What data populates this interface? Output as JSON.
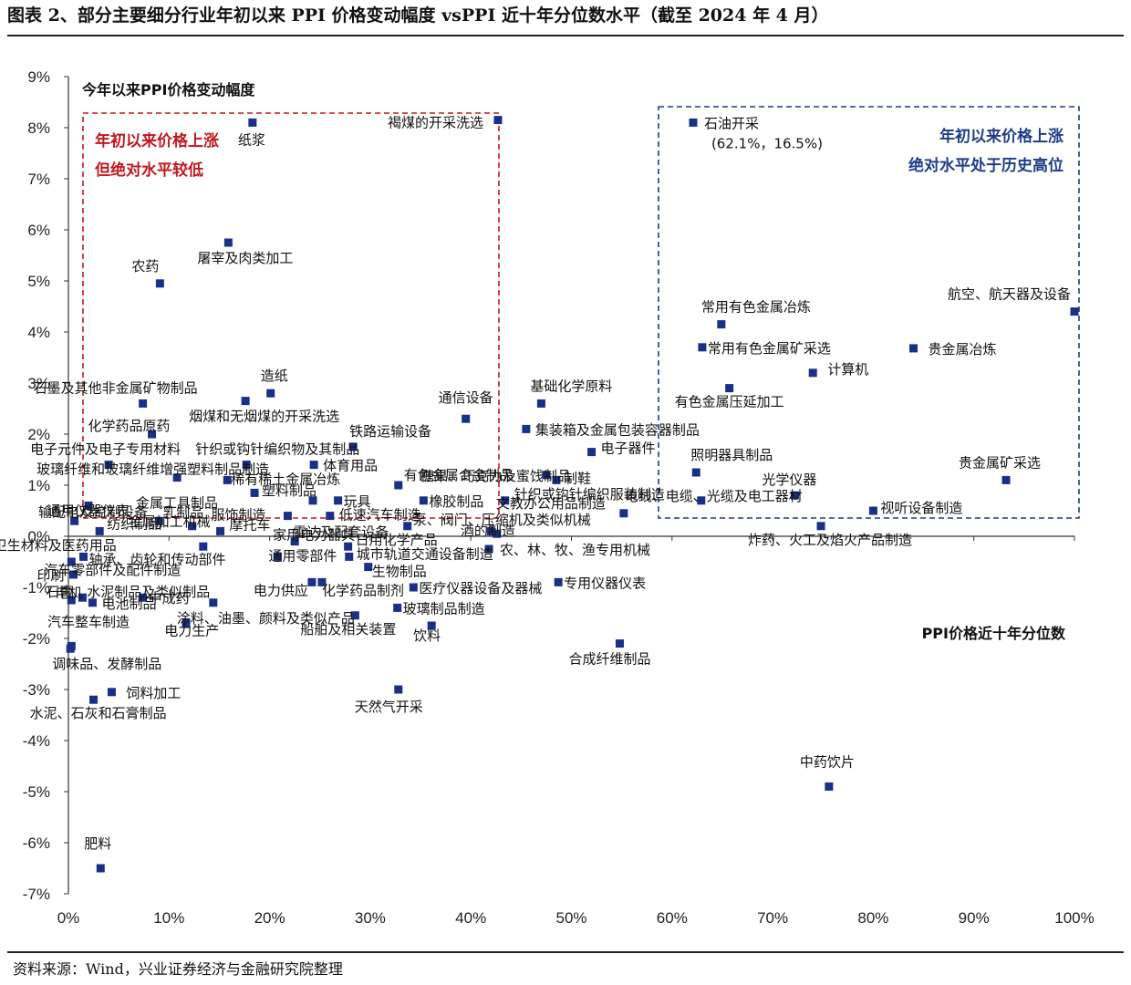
{
  "page": {
    "title": "图表 2、部分主要细分行业年初以来 PPI 价格变动幅度 vsPPI 近十年分位数水平（截至 2024 年 4 月）",
    "source": "资料来源：Wind，兴业证券经济与金融研究院整理"
  },
  "colors": {
    "marker": "#1a2f86",
    "red_box": "#c0181f",
    "blue_box": "#1f3c88"
  },
  "annotations": {
    "red_box": [
      "年初以来价格上涨",
      "但绝对水平较低"
    ],
    "blue_box": [
      "年初以来价格上涨",
      "绝对水平处于历史高位"
    ],
    "oil_coords": "(62.1%，16.5%)"
  },
  "chart_data": {
    "type": "scatter",
    "ylabel": "今年以来PPI价格变动幅度",
    "xlabel": "PPI价格近十年分位数",
    "xlim": [
      0,
      100
    ],
    "ylim": [
      -7,
      9
    ],
    "xticks": [
      "0%",
      "10%",
      "20%",
      "30%",
      "40%",
      "50%",
      "60%",
      "70%",
      "80%",
      "90%",
      "100%"
    ],
    "yticks": [
      "9%",
      "8%",
      "7%",
      "6%",
      "5%",
      "4%",
      "3%",
      "2%",
      "1%",
      "0%",
      "-1%",
      "-2%",
      "-3%",
      "-4%",
      "-5%",
      "-6%",
      "-7%"
    ],
    "points": [
      {
        "name": "纸浆",
        "x": 18.3,
        "y": 8.1
      },
      {
        "name": "褐煤的开采洗选",
        "x": 42.7,
        "y": 8.15
      },
      {
        "name": "石油开采",
        "x": 62.1,
        "y": 8.1
      },
      {
        "name": "屠宰及肉类加工",
        "x": 15.9,
        "y": 5.75
      },
      {
        "name": "农药",
        "x": 9.1,
        "y": 4.95
      },
      {
        "name": "航空、航天器及设备",
        "x": 100.0,
        "y": 4.4
      },
      {
        "name": "常用有色金属冶炼",
        "x": 64.9,
        "y": 4.15
      },
      {
        "name": "常用有色金属矿采选",
        "x": 63.0,
        "y": 3.7
      },
      {
        "name": "贵金属冶炼",
        "x": 84.0,
        "y": 3.68
      },
      {
        "name": "计算机",
        "x": 74.0,
        "y": 3.2
      },
      {
        "name": "有色金属压延加工",
        "x": 65.7,
        "y": 2.9
      },
      {
        "name": "造纸",
        "x": 20.1,
        "y": 2.8
      },
      {
        "name": "石墨及其他非金属矿物制品",
        "x": 7.4,
        "y": 2.6
      },
      {
        "name": "烟煤和无烟煤的开采洗选",
        "x": 17.6,
        "y": 2.65
      },
      {
        "name": "通信设备",
        "x": 39.5,
        "y": 2.3
      },
      {
        "name": "基础化学原料",
        "x": 47.0,
        "y": 2.6
      },
      {
        "name": "化学药品原药",
        "x": 8.3,
        "y": 2.0
      },
      {
        "name": "铁路运输设备",
        "x": 28.3,
        "y": 1.75
      },
      {
        "name": "集装箱及金属包装容器制品",
        "x": 45.5,
        "y": 2.1
      },
      {
        "name": "电子元件及电子专用材料",
        "x": 4.0,
        "y": 1.4
      },
      {
        "name": "针织或钩针编织物及其制品",
        "x": 17.7,
        "y": 1.4
      },
      {
        "name": "电子器件",
        "x": 52.0,
        "y": 1.65
      },
      {
        "name": "糖果、巧克力及蜜饯制品",
        "x": 47.5,
        "y": 1.2
      },
      {
        "name": "制鞋",
        "x": 48.5,
        "y": 1.1
      },
      {
        "name": "照明器具制品",
        "x": 62.4,
        "y": 1.25
      },
      {
        "name": "贵金属矿采选",
        "x": 93.2,
        "y": 1.1
      },
      {
        "name": "玻璃纤维和玻璃纤维增强塑料制品制造",
        "x": 10.8,
        "y": 1.15
      },
      {
        "name": "体育用品",
        "x": 24.4,
        "y": 1.4
      },
      {
        "name": "稀有稀土金属冶炼",
        "x": 15.8,
        "y": 1.1
      },
      {
        "name": "有色金属合金制品",
        "x": 32.8,
        "y": 1.0
      },
      {
        "name": "输配电及控制设备",
        "x": 2.0,
        "y": 0.6
      },
      {
        "name": "金属工具制品",
        "x": 18.5,
        "y": 0.85
      },
      {
        "name": "玩具",
        "x": 26.8,
        "y": 0.7
      },
      {
        "name": "橡胶制品",
        "x": 35.3,
        "y": 0.7
      },
      {
        "name": "针织或钩针编织服装制造",
        "x": 43.4,
        "y": 0.7
      },
      {
        "name": "光学仪器",
        "x": 72.2,
        "y": 0.8
      },
      {
        "name": "通用仪器仪表",
        "x": 0.6,
        "y": 0.3
      },
      {
        "name": "乳制品",
        "x": 9.0,
        "y": 0.3
      },
      {
        "name": "服饰制造",
        "x": 21.8,
        "y": 0.4
      },
      {
        "name": "塑料制品",
        "x": 24.3,
        "y": 0.7
      },
      {
        "name": "低速汽车制造",
        "x": 26.0,
        "y": 0.4
      },
      {
        "name": "文教办公用品制造",
        "x": 55.2,
        "y": 0.45
      },
      {
        "name": "电线、电缆、光缆及电工器材",
        "x": 62.9,
        "y": 0.7
      },
      {
        "name": "视听设备制造",
        "x": 80.0,
        "y": 0.5
      },
      {
        "name": "纺织制品",
        "x": 3.1,
        "y": 0.1
      },
      {
        "name": "金属加工机械",
        "x": 12.3,
        "y": 0.2
      },
      {
        "name": "摩托车",
        "x": 15.1,
        "y": 0.1
      },
      {
        "name": "家用电力器具",
        "x": 22.5,
        "y": -0.1
      },
      {
        "name": "泵、阀门、压缩机及类似机械",
        "x": 33.7,
        "y": 0.2
      },
      {
        "name": "雷达及配套设备",
        "x": 42.0,
        "y": 0.1
      },
      {
        "name": "炸药、火工及焰火产品制造",
        "x": 74.8,
        "y": 0.2
      },
      {
        "name": "汽车零部件及配件制造",
        "x": 0.3,
        "y": -0.5
      },
      {
        "name": "卫生材料及医药用品",
        "x": 13.4,
        "y": -0.2
      },
      {
        "name": "日用化学产品",
        "x": 27.8,
        "y": -0.2
      },
      {
        "name": "酒的制造",
        "x": 42.6,
        "y": 0.05
      },
      {
        "name": "农、林、牧、渔专用机械",
        "x": 41.8,
        "y": -0.25
      },
      {
        "name": "印刷",
        "x": 0.5,
        "y": -0.75
      },
      {
        "name": "轴承、齿轮和传动部件",
        "x": 1.5,
        "y": -0.4
      },
      {
        "name": "通用零部件",
        "x": 20.8,
        "y": -0.4
      },
      {
        "name": "城市轨道交通设备制造",
        "x": 27.9,
        "y": -0.4
      },
      {
        "name": "石膏、水泥制品及类似制品",
        "x": 0.3,
        "y": -1.25
      },
      {
        "name": "生物制品",
        "x": 29.8,
        "y": -0.6
      },
      {
        "name": "医疗仪器设备及器械",
        "x": 34.3,
        "y": -1.0
      },
      {
        "name": "专用仪器仪表",
        "x": 48.7,
        "y": -0.9
      },
      {
        "name": "电力供应",
        "x": 24.2,
        "y": -0.9
      },
      {
        "name": "化学药品制剂",
        "x": 25.2,
        "y": -0.9
      },
      {
        "name": "中成药",
        "x": 7.4,
        "y": -1.2
      },
      {
        "name": "电机",
        "x": 1.4,
        "y": -1.2
      },
      {
        "name": "电池制品",
        "x": 2.4,
        "y": -1.3
      },
      {
        "name": "涂料、油墨、颜料及类似产品",
        "x": 14.4,
        "y": -1.3
      },
      {
        "name": "玻璃制品制造",
        "x": 32.7,
        "y": -1.4
      },
      {
        "name": "汽车整车制造",
        "x": 11.7,
        "y": -1.7
      },
      {
        "name": "船舶及相关装置",
        "x": 28.5,
        "y": -1.55
      },
      {
        "name": "饮料",
        "x": 36.1,
        "y": -1.75
      },
      {
        "name": "电力生产",
        "x": 0.3,
        "y": -2.15
      },
      {
        "name": "调味品、发酵制品",
        "x": 0.2,
        "y": -2.2
      },
      {
        "name": "合成纤维制品",
        "x": 54.8,
        "y": -2.1
      },
      {
        "name": "饲料加工",
        "x": 4.3,
        "y": -3.05
      },
      {
        "name": "水泥、石灰和石膏制品",
        "x": 2.5,
        "y": -3.2
      },
      {
        "name": "天然气开采",
        "x": 32.8,
        "y": -3.0
      },
      {
        "name": "中药饮片",
        "x": 75.6,
        "y": -4.9
      },
      {
        "name": "肥料",
        "x": 3.2,
        "y": -6.5
      }
    ]
  }
}
